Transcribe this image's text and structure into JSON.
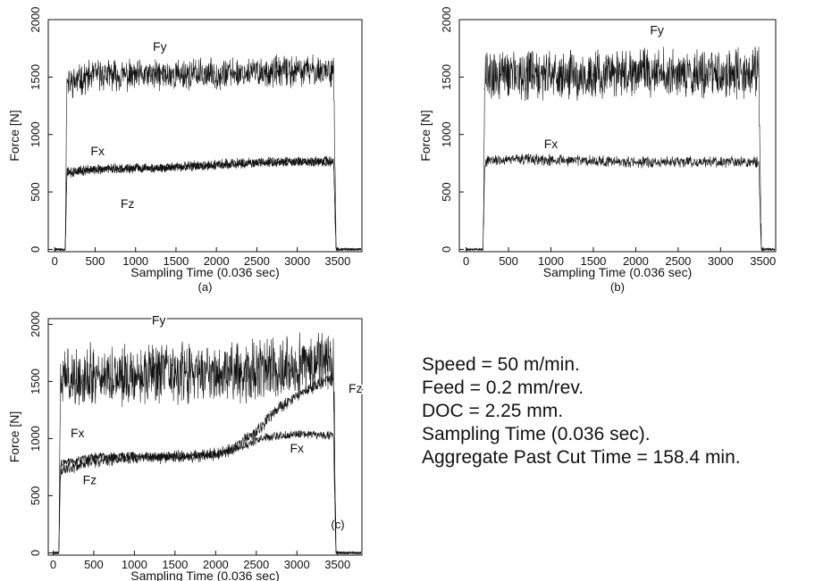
{
  "chart_data": [
    {
      "type": "line",
      "panel_label": "(a)",
      "xlabel": "Sampling Time (0.036 sec)",
      "ylabel": "Force [N]",
      "xlim": [
        -80,
        3800
      ],
      "ylim": [
        -20,
        2000
      ],
      "xticks": [
        0,
        500,
        1000,
        1500,
        2000,
        2500,
        3000,
        3500
      ],
      "yticks": [
        0,
        500,
        1000,
        1500,
        2000
      ],
      "series": [
        {
          "name": "Fy",
          "x": [
            0,
            130,
            150,
            500,
            1000,
            1500,
            2000,
            2500,
            3000,
            3450,
            3480,
            3800
          ],
          "y": [
            0,
            0,
            1440,
            1520,
            1510,
            1520,
            1530,
            1540,
            1550,
            1560,
            0,
            0
          ],
          "noise": 110
        },
        {
          "name": "Fx",
          "x": [
            0,
            130,
            150,
            500,
            1000,
            1500,
            2000,
            2500,
            3000,
            3450,
            3480,
            3800
          ],
          "y": [
            0,
            0,
            680,
            700,
            710,
            720,
            740,
            760,
            770,
            770,
            0,
            0
          ],
          "noise": 35
        },
        {
          "name": "Fz",
          "x": [
            0,
            130,
            150,
            500,
            1000,
            1500,
            2000,
            2500,
            3000,
            3450,
            3480,
            3800
          ],
          "y": [
            0,
            0,
            660,
            690,
            700,
            710,
            730,
            750,
            760,
            760,
            0,
            0
          ],
          "noise": 30
        }
      ],
      "annotations": [
        {
          "text": "Fy",
          "x": 1300,
          "y": 1730
        },
        {
          "text": "Fx",
          "x": 530,
          "y": 820
        },
        {
          "text": "Fz",
          "x": 900,
          "y": 360
        }
      ]
    },
    {
      "type": "line",
      "panel_label": "(b)",
      "xlabel": "Sampling Time (0.036 sec)",
      "ylabel": "Force [N]",
      "xlim": [
        -80,
        3650
      ],
      "ylim": [
        -20,
        2000
      ],
      "xticks": [
        0,
        500,
        1000,
        1500,
        2000,
        2500,
        3000,
        3500
      ],
      "yticks": [
        0,
        500,
        1000,
        1500,
        2000
      ],
      "series": [
        {
          "name": "Fy",
          "x": [
            0,
            200,
            220,
            500,
            1000,
            1500,
            2000,
            2500,
            3000,
            3450,
            3480,
            3650
          ],
          "y": [
            0,
            0,
            1500,
            1520,
            1510,
            1520,
            1540,
            1530,
            1520,
            1540,
            0,
            0
          ],
          "noise": 170
        },
        {
          "name": "Fx",
          "x": [
            0,
            200,
            220,
            500,
            1000,
            1500,
            2000,
            2500,
            3000,
            3450,
            3480,
            3650
          ],
          "y": [
            0,
            0,
            760,
            790,
            780,
            770,
            760,
            760,
            760,
            760,
            0,
            0
          ],
          "noise": 40
        }
      ],
      "annotations": [
        {
          "text": "Fy",
          "x": 2250,
          "y": 1870
        },
        {
          "text": "Fx",
          "x": 1000,
          "y": 880
        }
      ]
    },
    {
      "type": "line",
      "panel_label": "(c)",
      "xlabel": "Sampling Time (0.036 sec)",
      "ylabel": "Force [N]",
      "xlim": [
        -60,
        3800
      ],
      "ylim": [
        -20,
        2050
      ],
      "xticks": [
        0,
        500,
        1000,
        1500,
        2000,
        2500,
        3000,
        3500
      ],
      "yticks": [
        0,
        500,
        1000,
        1500,
        2000
      ],
      "series": [
        {
          "name": "Fy",
          "x": [
            0,
            70,
            90,
            500,
            1000,
            1500,
            2000,
            2500,
            3000,
            3300,
            3450,
            3480,
            3800
          ],
          "y": [
            0,
            0,
            1520,
            1560,
            1560,
            1560,
            1570,
            1600,
            1640,
            1680,
            1700,
            0,
            0
          ],
          "noise": 220
        },
        {
          "name": "Fz",
          "x": [
            0,
            70,
            90,
            500,
            1000,
            1500,
            2000,
            2200,
            2500,
            2800,
            3100,
            3450,
            3480,
            3800
          ],
          "y": [
            0,
            0,
            720,
            800,
            830,
            840,
            860,
            900,
            1060,
            1280,
            1420,
            1530,
            0,
            0
          ],
          "noise": 45
        },
        {
          "name": "Fx",
          "x": [
            0,
            70,
            90,
            500,
            1000,
            1500,
            2000,
            2300,
            2600,
            3000,
            3450,
            3480,
            3800
          ],
          "y": [
            0,
            0,
            780,
            840,
            850,
            840,
            860,
            920,
            1010,
            1040,
            1030,
            0,
            0
          ],
          "noise": 30
        }
      ],
      "annotations": [
        {
          "text": "Fy",
          "x": 1300,
          "y": 2000
        },
        {
          "text": "Fx",
          "x": 300,
          "y": 1010
        },
        {
          "text": "Fz",
          "x": 450,
          "y": 600
        },
        {
          "text": "Fx",
          "x": 3000,
          "y": 880
        },
        {
          "text": "Fz",
          "x": 3720,
          "y": 1400
        }
      ]
    }
  ],
  "conditions": {
    "speed": "Speed = 50 m/min.",
    "feed": "Feed = 0.2 mm/rev.",
    "doc": "DOC = 2.25 mm.",
    "sampling": "Sampling Time (0.036 sec).",
    "aggregate": "Aggregate Past Cut Time = 158.4 min."
  }
}
